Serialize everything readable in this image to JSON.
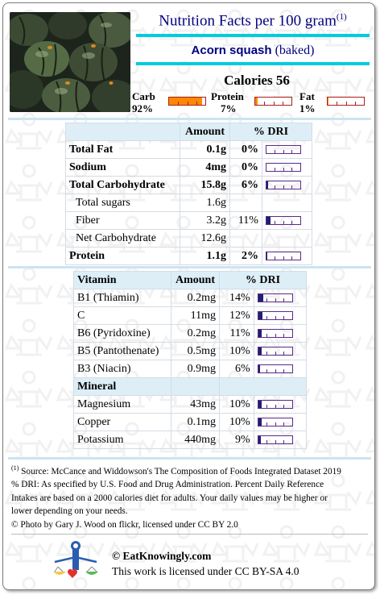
{
  "header": {
    "title": "Nutrition Facts per 100 gram",
    "title_ref": "(1)",
    "food_name": "Acorn squash",
    "food_prep": "(baked)",
    "calories": "Calories 56"
  },
  "macros": [
    {
      "name": "Carb",
      "percent": "92%",
      "value": 92
    },
    {
      "name": "Protein",
      "percent": "7%",
      "value": 7
    },
    {
      "name": "Fat",
      "percent": "1%",
      "value": 1
    }
  ],
  "nutrients_table": {
    "headers": [
      "",
      "Amount",
      "% DRI"
    ],
    "rows": [
      {
        "name": "Total Fat",
        "amount": "0.1g",
        "dri": "0%",
        "dri_value": 0,
        "bold": true
      },
      {
        "name": "Sodium",
        "amount": "4mg",
        "dri": "0%",
        "dri_value": 0,
        "bold": true
      },
      {
        "name": "Total Carbohydrate",
        "amount": "15.8g",
        "dri": "6%",
        "dri_value": 6,
        "bold": true
      },
      {
        "name": "Total sugars",
        "amount": "1.6g",
        "dri": "",
        "dri_value": null,
        "bold": false
      },
      {
        "name": "Fiber",
        "amount": "3.2g",
        "dri": "11%",
        "dri_value": 11,
        "bold": false
      },
      {
        "name": "Net Carbohydrate",
        "amount": "12.6g",
        "dri": "",
        "dri_value": null,
        "bold": false
      },
      {
        "name": "Protein",
        "amount": "1.1g",
        "dri": "2%",
        "dri_value": 2,
        "bold": true
      }
    ]
  },
  "vitamin_table": {
    "headers": [
      "Vitamin",
      "Amount",
      "% DRI"
    ],
    "rows": [
      {
        "name": "B1 (Thiamin)",
        "amount": "0.2mg",
        "dri": "14%",
        "dri_value": 14
      },
      {
        "name": "C",
        "amount": "11mg",
        "dri": "12%",
        "dri_value": 12
      },
      {
        "name": "B6 (Pyridoxine)",
        "amount": "0.2mg",
        "dri": "11%",
        "dri_value": 11
      },
      {
        "name": "B5 (Pantothenate)",
        "amount": "0.5mg",
        "dri": "10%",
        "dri_value": 10
      },
      {
        "name": "B3 (Niacin)",
        "amount": "0.9mg",
        "dri": "6%",
        "dri_value": 6
      }
    ],
    "mineral_header": "Mineral",
    "mineral_rows": [
      {
        "name": "Magnesium",
        "amount": "43mg",
        "dri": "10%",
        "dri_value": 10
      },
      {
        "name": "Copper",
        "amount": "0.1mg",
        "dri": "10%",
        "dri_value": 10
      },
      {
        "name": "Potassium",
        "amount": "440mg",
        "dri": "9%",
        "dri_value": 9
      }
    ]
  },
  "notes": {
    "ref": "(1)",
    "source": " Source: McCance and Widdowson's The Composition of Foods Integrated Dataset 2019",
    "dri_line1": "% DRI: As specified by U.S. Food and Drug Administration. Percent Daily Reference",
    "dri_line2": "Intakes are based on a 2000 calories diet for adults. Your daily values may be higher or",
    "dri_line3": "lower depending on your needs.",
    "photo_credit": "© Photo by Gary J. Wood on flickr, licensed under CC BY 2.0"
  },
  "footer": {
    "site": "© EatKnowingly.com",
    "license": "This work is licensed under CC BY-SA 4.0"
  },
  "colors": {
    "title_navy": "#000080",
    "accent_cyan": "#00ccdd",
    "macro_fill": "#ff8800",
    "dri_fill": "#20206e",
    "header_bg": "#ddeef7"
  }
}
